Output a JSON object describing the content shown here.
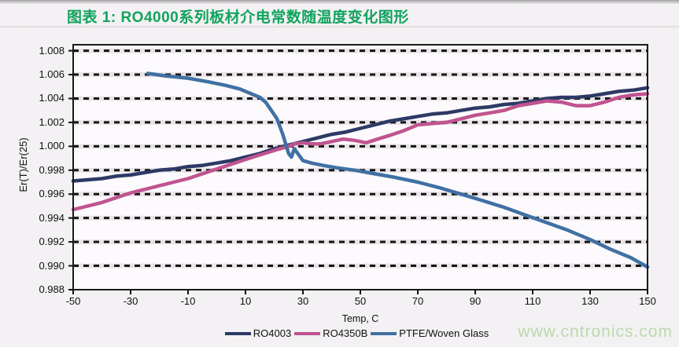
{
  "page": {
    "title": "图表 1: RO4000系列板材介电常数随温度变化图形",
    "title_color": "#12a35e",
    "watermark": "www.cntronics.com",
    "watermark_color": "#bcd9ab"
  },
  "chart_data": {
    "type": "line",
    "title": "",
    "xlabel": "Temp, C",
    "ylabel": "Er(T)/Er(25)",
    "xlim": [
      -50,
      150
    ],
    "ylim": [
      0.988,
      1.0085
    ],
    "grid": "horizontal-dashed-black",
    "legend_position": "bottom-center",
    "x_tick_labels": [
      "-50",
      "-30",
      "-10",
      "10",
      "30",
      "50",
      "70",
      "90",
      "110",
      "130",
      "150"
    ],
    "x_tick_values": [
      -50,
      -30,
      -10,
      10,
      30,
      50,
      70,
      90,
      110,
      130,
      150
    ],
    "y_tick_labels": [
      "1.008",
      "1.006",
      "1.004",
      "1.002",
      "1.000",
      "0.998",
      "0.996",
      "0.994",
      "0.992",
      "0.990",
      "0.988"
    ],
    "y_tick_values": [
      1.008,
      1.006,
      1.004,
      1.002,
      1.0,
      0.998,
      0.996,
      0.994,
      0.992,
      0.99,
      0.988
    ],
    "series": [
      {
        "name": "RO4003",
        "color": "#2d3a66",
        "width": 4.5,
        "points": [
          [
            -50,
            0.9971
          ],
          [
            -45,
            0.9972
          ],
          [
            -40,
            0.9973
          ],
          [
            -35,
            0.9975
          ],
          [
            -30,
            0.9976
          ],
          [
            -25,
            0.9978
          ],
          [
            -20,
            0.998
          ],
          [
            -15,
            0.9981
          ],
          [
            -10,
            0.9983
          ],
          [
            -5,
            0.9984
          ],
          [
            0,
            0.9986
          ],
          [
            5,
            0.9988
          ],
          [
            10,
            0.9991
          ],
          [
            15,
            0.9994
          ],
          [
            20,
            0.9998
          ],
          [
            25,
            1.0001
          ],
          [
            30,
            1.0004
          ],
          [
            35,
            1.0007
          ],
          [
            40,
            1.001
          ],
          [
            45,
            1.0012
          ],
          [
            50,
            1.0015
          ],
          [
            55,
            1.0018
          ],
          [
            60,
            1.0021
          ],
          [
            65,
            1.0023
          ],
          [
            70,
            1.0025
          ],
          [
            75,
            1.0027
          ],
          [
            80,
            1.0028
          ],
          [
            85,
            1.003
          ],
          [
            90,
            1.0032
          ],
          [
            95,
            1.0033
          ],
          [
            100,
            1.0035
          ],
          [
            105,
            1.0036
          ],
          [
            110,
            1.0038
          ],
          [
            115,
            1.004
          ],
          [
            120,
            1.0041
          ],
          [
            125,
            1.0041
          ],
          [
            130,
            1.0042
          ],
          [
            135,
            1.0044
          ],
          [
            140,
            1.0046
          ],
          [
            145,
            1.0047
          ],
          [
            150,
            1.0049
          ]
        ]
      },
      {
        "name": "RO4350B",
        "color": "#c0548f",
        "width": 4.5,
        "points": [
          [
            -50,
            0.9947
          ],
          [
            -45,
            0.995
          ],
          [
            -40,
            0.9953
          ],
          [
            -35,
            0.9957
          ],
          [
            -30,
            0.9961
          ],
          [
            -25,
            0.9964
          ],
          [
            -20,
            0.9967
          ],
          [
            -15,
            0.997
          ],
          [
            -10,
            0.9973
          ],
          [
            -5,
            0.9977
          ],
          [
            0,
            0.9981
          ],
          [
            5,
            0.9985
          ],
          [
            10,
            0.9989
          ],
          [
            14,
            0.9992
          ],
          [
            18,
            0.9995
          ],
          [
            22,
            0.9998
          ],
          [
            25,
            1.0
          ],
          [
            27,
            1.0002
          ],
          [
            30,
            1.0003
          ],
          [
            33,
            1.0002
          ],
          [
            36,
            1.0002
          ],
          [
            40,
            1.0004
          ],
          [
            44,
            1.0006
          ],
          [
            48,
            1.0005
          ],
          [
            52,
            1.0003
          ],
          [
            56,
            1.0006
          ],
          [
            60,
            1.0009
          ],
          [
            65,
            1.0013
          ],
          [
            70,
            1.0018
          ],
          [
            75,
            1.0019
          ],
          [
            80,
            1.002
          ],
          [
            85,
            1.0023
          ],
          [
            90,
            1.0026
          ],
          [
            95,
            1.0028
          ],
          [
            100,
            1.003
          ],
          [
            105,
            1.0034
          ],
          [
            110,
            1.0036
          ],
          [
            115,
            1.0038
          ],
          [
            120,
            1.0037
          ],
          [
            125,
            1.0034
          ],
          [
            130,
            1.0034
          ],
          [
            135,
            1.0037
          ],
          [
            140,
            1.0041
          ],
          [
            145,
            1.0043
          ],
          [
            150,
            1.0044
          ]
        ]
      },
      {
        "name": "PTFE/Woven Glass",
        "color": "#4070a4",
        "width": 4.5,
        "points": [
          [
            -24,
            1.0061
          ],
          [
            -18,
            1.0059
          ],
          [
            -10,
            1.0057
          ],
          [
            -3,
            1.0054
          ],
          [
            3,
            1.0051
          ],
          [
            8,
            1.0048
          ],
          [
            12,
            1.0044
          ],
          [
            15,
            1.0041
          ],
          [
            17,
            1.0037
          ],
          [
            19,
            1.003
          ],
          [
            21,
            1.0023
          ],
          [
            23,
            1.001
          ],
          [
            25,
            0.9994
          ],
          [
            26,
            0.9991
          ],
          [
            27,
            0.9998
          ],
          [
            28.5,
            0.9993
          ],
          [
            30,
            0.9988
          ],
          [
            33,
            0.9986
          ],
          [
            37,
            0.9984
          ],
          [
            42,
            0.9982
          ],
          [
            48,
            0.998
          ],
          [
            55,
            0.9977
          ],
          [
            62,
            0.9974
          ],
          [
            70,
            0.997
          ],
          [
            78,
            0.9965
          ],
          [
            85,
            0.996
          ],
          [
            92,
            0.9955
          ],
          [
            100,
            0.9949
          ],
          [
            108,
            0.9942
          ],
          [
            115,
            0.9936
          ],
          [
            122,
            0.993
          ],
          [
            130,
            0.9922
          ],
          [
            137,
            0.9914
          ],
          [
            144,
            0.9907
          ],
          [
            150,
            0.9899
          ]
        ]
      }
    ]
  }
}
